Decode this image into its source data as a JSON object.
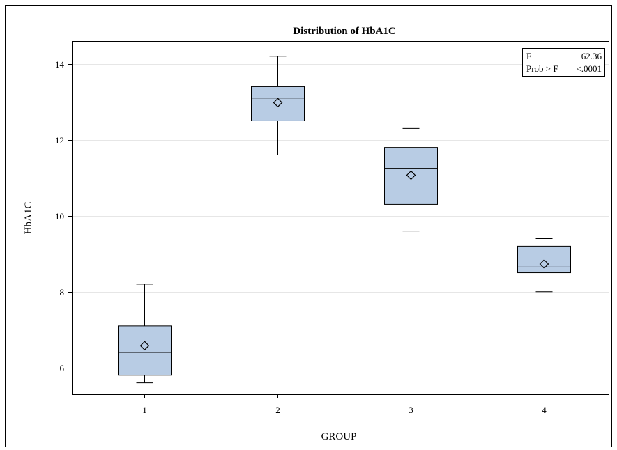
{
  "chart_data": {
    "type": "boxplot",
    "title": "Distribution of HbA1C",
    "xlabel": "GROUP",
    "ylabel": "HbA1C",
    "categories": [
      "1",
      "2",
      "3",
      "4"
    ],
    "ylim": [
      5.3,
      14.6
    ],
    "yticks": [
      6,
      8,
      10,
      12,
      14
    ],
    "yticklabels": [
      "6",
      "8",
      "10",
      "12",
      "14"
    ],
    "grid": "horizontal",
    "boxes": [
      {
        "category": "1",
        "min": 5.6,
        "q1": 5.8,
        "median": 6.4,
        "q3": 7.1,
        "max": 8.2,
        "mean": 6.58
      },
      {
        "category": "2",
        "min": 11.6,
        "q1": 12.5,
        "median": 13.1,
        "q3": 13.4,
        "max": 14.2,
        "mean": 12.98
      },
      {
        "category": "3",
        "min": 9.6,
        "q1": 10.3,
        "median": 11.25,
        "q3": 11.8,
        "max": 12.3,
        "mean": 11.07
      },
      {
        "category": "4",
        "min": 8.0,
        "q1": 8.5,
        "median": 8.65,
        "q3": 9.2,
        "max": 9.4,
        "mean": 8.73
      }
    ],
    "inset": {
      "placement": "top-right",
      "rows": [
        {
          "label": "F",
          "value": "62.36"
        },
        {
          "label": "Prob > F",
          "value": "<.0001"
        }
      ]
    },
    "colors": {
      "box_fill": "#b8cce4",
      "line": "#000000",
      "grid": "#e6e6e6"
    }
  }
}
